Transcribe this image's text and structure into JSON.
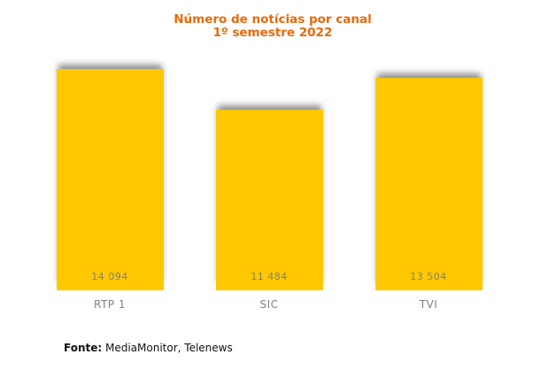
{
  "chart_data": {
    "type": "bar",
    "title": "Número de notícias por canal",
    "subtitle": "1º semestre 2022",
    "categories": [
      "RTP 1",
      "SIC",
      "TVI"
    ],
    "values": [
      14094,
      11484,
      13504
    ],
    "value_labels": [
      "14 094",
      "11 484",
      "13 504"
    ],
    "ylim": [
      0,
      16000
    ],
    "xlabel": "",
    "ylabel": "",
    "grid": false,
    "legend": false,
    "bar_color": "#FFC800",
    "title_color": "#E8690A",
    "label_color": "#808080",
    "value_label_color": "#7F7F7F",
    "source_label": "Fonte:",
    "source_text": " MediaMonitor, Telenews"
  }
}
